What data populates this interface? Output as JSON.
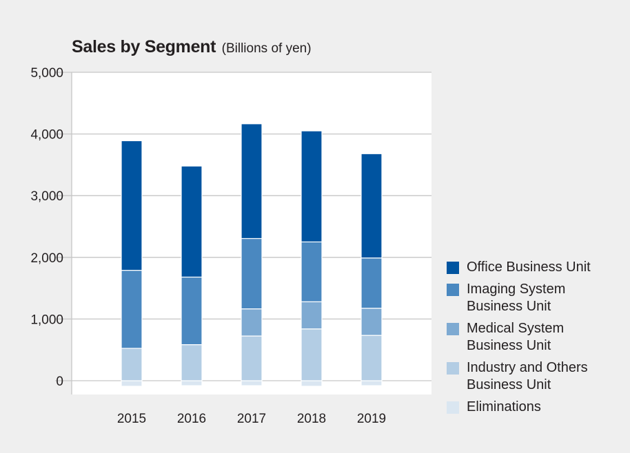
{
  "chart_data": {
    "type": "bar",
    "stacked": true,
    "title": "Sales by Segment",
    "unit_label": "(Billions of yen)",
    "xlabel": "",
    "ylabel": "",
    "categories": [
      "2015",
      "2016",
      "2017",
      "2018",
      "2019"
    ],
    "ylim": [
      0,
      5000
    ],
    "yticks": [
      0,
      1000,
      2000,
      3000,
      4000,
      5000
    ],
    "ytick_labels": [
      "0",
      "1,000",
      "2,000",
      "3,000",
      "4,000",
      "5,000"
    ],
    "grid": true,
    "legend_position": "right",
    "series": [
      {
        "name": "Eliminations",
        "color": "#dae6f1",
        "values": [
          -90,
          -80,
          -80,
          -90,
          -80
        ]
      },
      {
        "name": "Industry and Others Business Unit",
        "color": "#b3cde4",
        "values": [
          525,
          585,
          725,
          840,
          735
        ]
      },
      {
        "name": "Medical System Business Unit",
        "color": "#7eaad2",
        "values": [
          0,
          0,
          440,
          440,
          440
        ]
      },
      {
        "name": "Imaging System Business Unit",
        "color": "#4a88c0",
        "values": [
          1265,
          1095,
          1140,
          970,
          815
        ]
      },
      {
        "name": "Office Business Unit",
        "color": "#0054a0",
        "values": [
          2100,
          1800,
          1860,
          1800,
          1690
        ]
      }
    ]
  },
  "legend": [
    {
      "label_lines": [
        "Office Business Unit"
      ],
      "color": "#0054a0"
    },
    {
      "label_lines": [
        "Imaging System",
        "Business Unit"
      ],
      "color": "#4a88c0"
    },
    {
      "label_lines": [
        "Medical System",
        "Business Unit"
      ],
      "color": "#7eaad2"
    },
    {
      "label_lines": [
        "Industry and Others",
        "Business Unit"
      ],
      "color": "#b3cde4"
    },
    {
      "label_lines": [
        "Eliminations"
      ],
      "color": "#dae6f1"
    }
  ]
}
